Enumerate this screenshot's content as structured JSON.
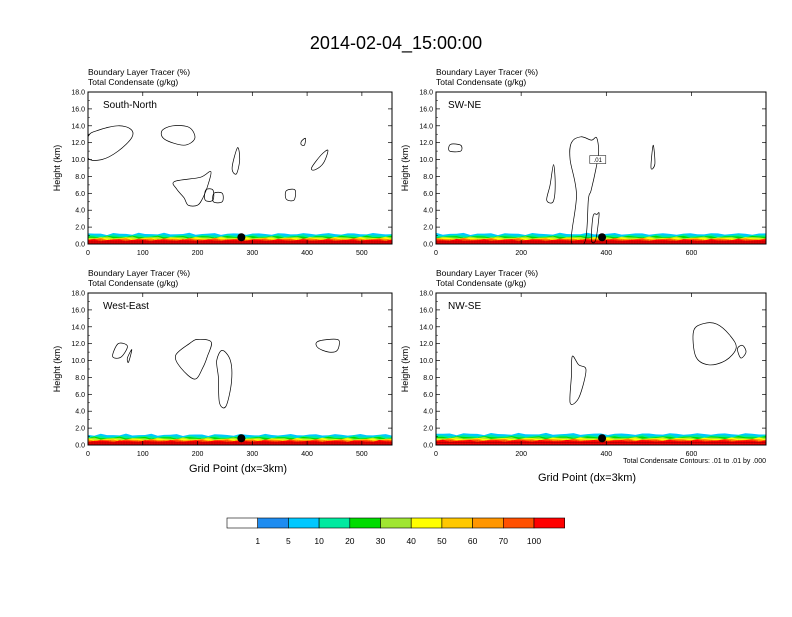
{
  "title": "2014-02-04_15:00:00",
  "panel_header_line1": "Boundary Layer Tracer   (%)",
  "panel_header_line2": "Total Condensate   (g/kg)",
  "y_axis_label": "Height (km)",
  "x_axis_label": "Grid Point (dx=3km)",
  "contour_note": "Total Condensate Contours: .01 to .01 by .000",
  "contour_label": ".01",
  "colorbar": {
    "colors": [
      "#ffffff",
      "#1e8cf0",
      "#00c8ff",
      "#00eaa0",
      "#00dc00",
      "#a0e632",
      "#ffff00",
      "#ffc800",
      "#ff9600",
      "#ff5000",
      "#ff0000"
    ],
    "labels": [
      "1",
      "5",
      "10",
      "20",
      "30",
      "40",
      "50",
      "60",
      "70",
      "100"
    ]
  },
  "chart_data": [
    {
      "type": "contour",
      "name": "South-North",
      "x_ticks": [
        0,
        100,
        200,
        300,
        400,
        500
      ],
      "xlim": [
        0,
        555
      ],
      "y_ticks": [
        "0.0",
        "2.0",
        "4.0",
        "6.0",
        "8.0",
        "10.0",
        "12.0",
        "14.0",
        "16.0",
        "18.0"
      ],
      "ylim": [
        0,
        18
      ],
      "marker_x": 280,
      "pbl_top_km": 1.2,
      "condensate_contours": [
        [
          [
            0,
            10.2
          ],
          [
            25,
            10.0
          ],
          [
            55,
            11.0
          ],
          [
            80,
            12.6
          ],
          [
            78,
            13.6
          ],
          [
            55,
            14.0
          ],
          [
            20,
            13.5
          ],
          [
            0,
            12.7
          ]
        ],
        [
          [
            135,
            13.4
          ],
          [
            155,
            14.0
          ],
          [
            185,
            13.8
          ],
          [
            195,
            12.5
          ],
          [
            175,
            11.7
          ],
          [
            140,
            12.4
          ]
        ],
        [
          [
            158,
            7.4
          ],
          [
            205,
            7.9
          ],
          [
            224,
            8.6
          ],
          [
            220,
            7.2
          ],
          [
            210,
            5.5
          ],
          [
            200,
            4.6
          ],
          [
            183,
            4.6
          ],
          [
            175,
            5.5
          ],
          [
            162,
            6.5
          ]
        ],
        [
          [
            215,
            6.4
          ],
          [
            228,
            6.4
          ],
          [
            228,
            5.2
          ],
          [
            214,
            5.2
          ]
        ],
        [
          [
            230,
            6.0
          ],
          [
            245,
            6.0
          ],
          [
            245,
            5.0
          ],
          [
            229,
            5.0
          ]
        ],
        [
          [
            263,
            9.0
          ],
          [
            273,
            11.4
          ],
          [
            277,
            10.0
          ],
          [
            271,
            8.3
          ]
        ],
        [
          [
            362,
            6.3
          ],
          [
            378,
            6.4
          ],
          [
            376,
            5.2
          ],
          [
            362,
            5.3
          ]
        ],
        [
          [
            390,
            12.2
          ],
          [
            397,
            12.5
          ],
          [
            395,
            11.7
          ],
          [
            389,
            11.8
          ]
        ],
        [
          [
            408,
            9.0
          ],
          [
            425,
            10.5
          ],
          [
            438,
            11.1
          ],
          [
            430,
            9.6
          ],
          [
            415,
            8.8
          ]
        ]
      ]
    },
    {
      "type": "contour",
      "name": "SW-NE",
      "x_ticks": [
        0,
        200,
        400,
        600
      ],
      "xlim": [
        0,
        775
      ],
      "y_ticks": [
        "0.0",
        "2.0",
        "4.0",
        "6.0",
        "8.0",
        "10.0",
        "12.0",
        "14.0",
        "16.0",
        "18.0"
      ],
      "ylim": [
        0,
        18
      ],
      "marker_x": 390,
      "pbl_top_km": 1.2,
      "condensate_contours": [
        [
          [
            32,
            11.0
          ],
          [
            58,
            11.0
          ],
          [
            58,
            11.7
          ],
          [
            34,
            11.8
          ]
        ],
        [
          [
            318,
            0.3
          ],
          [
            330,
            5.8
          ],
          [
            315,
            10.0
          ],
          [
            318,
            12.0
          ],
          [
            340,
            12.7
          ],
          [
            365,
            12.3
          ],
          [
            377,
            12.6
          ],
          [
            382,
            11.0
          ],
          [
            376,
            9.0
          ],
          [
            364,
            6.3
          ],
          [
            358,
            5.3
          ],
          [
            350,
            0.3
          ]
        ],
        [
          [
            260,
            5.2
          ],
          [
            268,
            7.0
          ],
          [
            276,
            9.4
          ],
          [
            280,
            7.0
          ],
          [
            275,
            5.0
          ]
        ],
        [
          [
            365,
            0.5
          ],
          [
            369,
            3.3
          ],
          [
            378,
            3.5
          ],
          [
            383,
            3.5
          ],
          [
            375,
            0.5
          ]
        ],
        [
          [
            505,
            9.0
          ],
          [
            510,
            11.7
          ],
          [
            514,
            9.5
          ]
        ]
      ]
    },
    {
      "type": "contour",
      "name": "West-East",
      "x_ticks": [
        0,
        100,
        200,
        300,
        400,
        500
      ],
      "xlim": [
        0,
        555
      ],
      "y_ticks": [
        "0.0",
        "2.0",
        "4.0",
        "6.0",
        "8.0",
        "10.0",
        "12.0",
        "14.0",
        "16.0",
        "18.0"
      ],
      "ylim": [
        0,
        18
      ],
      "marker_x": 280,
      "pbl_top_km": 1.2,
      "condensate_contours": [
        [
          [
            45,
            10.5
          ],
          [
            55,
            12.0
          ],
          [
            72,
            11.7
          ],
          [
            60,
            10.4
          ]
        ],
        [
          [
            72,
            10.3
          ],
          [
            80,
            11.3
          ],
          [
            74,
            9.8
          ]
        ],
        [
          [
            160,
            10.6
          ],
          [
            185,
            12.0
          ],
          [
            200,
            12.5
          ],
          [
            225,
            12.2
          ],
          [
            218,
            10.5
          ],
          [
            210,
            9.2
          ],
          [
            195,
            7.8
          ],
          [
            170,
            9.1
          ]
        ],
        [
          [
            235,
            10.0
          ],
          [
            245,
            11.2
          ],
          [
            260,
            10.0
          ],
          [
            262,
            7.5
          ],
          [
            252,
            4.6
          ],
          [
            240,
            5.0
          ],
          [
            238,
            8.0
          ]
        ],
        [
          [
            418,
            12.2
          ],
          [
            440,
            12.5
          ],
          [
            458,
            12.4
          ],
          [
            455,
            11.2
          ],
          [
            440,
            11.0
          ],
          [
            420,
            11.5
          ]
        ]
      ]
    },
    {
      "type": "contour",
      "name": "NW-SE",
      "x_ticks": [
        0,
        200,
        400,
        600
      ],
      "xlim": [
        0,
        775
      ],
      "y_ticks": [
        "0.0",
        "2.0",
        "4.0",
        "6.0",
        "8.0",
        "10.0",
        "12.0",
        "14.0",
        "16.0",
        "18.0"
      ],
      "ylim": [
        0,
        18
      ],
      "marker_x": 390,
      "pbl_top_km": 1.3,
      "condensate_contours": [
        [
          [
            320,
            10.5
          ],
          [
            335,
            9.5
          ],
          [
            352,
            9.0
          ],
          [
            345,
            7.0
          ],
          [
            332,
            5.3
          ],
          [
            315,
            5.0
          ],
          [
            318,
            8.2
          ]
        ],
        [
          [
            605,
            13.5
          ],
          [
            630,
            14.4
          ],
          [
            660,
            14.3
          ],
          [
            690,
            13.0
          ],
          [
            705,
            11.5
          ],
          [
            680,
            10.0
          ],
          [
            640,
            9.5
          ],
          [
            610,
            10.5
          ]
        ],
        [
          [
            708,
            11.4
          ],
          [
            720,
            11.8
          ],
          [
            728,
            11.0
          ],
          [
            716,
            10.3
          ]
        ]
      ]
    }
  ]
}
